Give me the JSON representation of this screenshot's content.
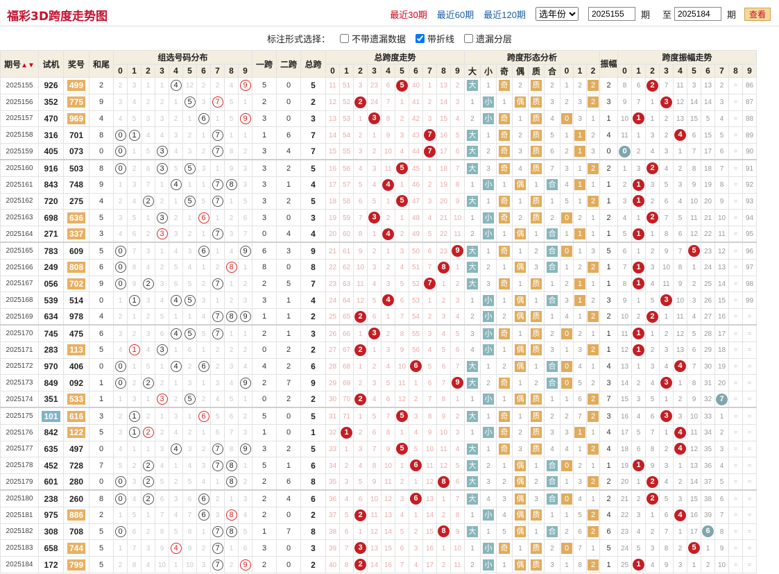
{
  "header": {
    "title": "福彩3D跨度走势图",
    "nav": [
      {
        "label": "最近30期",
        "active": true
      },
      {
        "label": "最近60期",
        "active": false
      },
      {
        "label": "最近120期",
        "active": false
      }
    ],
    "year_select": "选年份",
    "from_value": "2025155",
    "from_unit": "期",
    "to_label": "至",
    "to_value": "2025184",
    "to_unit": "期",
    "query_button": "查看"
  },
  "options": {
    "label": "标注形式选择：",
    "items": [
      {
        "label": "不带遗漏数据",
        "checked": false
      },
      {
        "label": "带折线",
        "checked": true
      },
      {
        "label": "遗漏分层",
        "checked": false
      }
    ]
  },
  "columns": {
    "qihao": "期号",
    "shiji": "试机",
    "jianghao": "奖号",
    "hewei": "和尾",
    "zuxuan": "组选号码分布",
    "yikua": "一跨",
    "erkua": "二跨",
    "zongkua": "总跨",
    "zkzs": "总跨度走势",
    "xtfx": "跨度形态分析",
    "zhenfu": "振幅",
    "zfzs": "跨度振幅走势",
    "form_heads": [
      "大",
      "小",
      "奇",
      "偶",
      "质",
      "合",
      "0",
      "1",
      "2"
    ],
    "digits": [
      "0",
      "1",
      "2",
      "3",
      "4",
      "5",
      "6",
      "7",
      "8",
      "9"
    ]
  },
  "rows": [
    {
      "q": "2025155",
      "s": "926",
      "j": "499",
      "jh": true,
      "h": "2",
      "zx": "2,3,1,1,C4,12,2,2,4,R9",
      "y1": "5",
      "y2": "0",
      "zk": "5",
      "kz": "11,51,3,23,6,B5,40,1,13,2",
      "dx": "大,1",
      "jo": "奇,2",
      "zh": "质,2",
      "012": "1,2,O2",
      "zf": "2",
      "zz": "8,6,B2,7,11,3,13,2,-,86"
    },
    {
      "q": "2025156",
      "s": "352",
      "j": "775",
      "jh": true,
      "h": "9",
      "zx": "3,4,2,2,1,C5,3,R7,5,1",
      "y1": "2",
      "y2": "0",
      "zk": "2",
      "kz": "12,52,B2,24,7,1,41,2,14,3",
      "dx": "1,小",
      "jo": "1,偶",
      "zh": "质,3",
      "012": "2,3,O2",
      "zf": "3",
      "zz": "9,7,1,B3,12,14,14,3,-,87"
    },
    {
      "q": "2025157",
      "s": "470",
      "j": "969",
      "jh": true,
      "h": "4",
      "zx": "4,5,3,3,2,1,C6,1,5,R9",
      "y1": "3",
      "y2": "0",
      "zk": "3",
      "kz": "13,53,1,B3,8,2,42,3,15,4",
      "dx": "2,小",
      "jo": "奇,1",
      "zh": "质,4",
      "012": "O0,3,1",
      "zf": "1",
      "zz": "10,B1,1,2,13,15,5,4,-,88"
    },
    {
      "q": "2025158",
      "s": "316",
      "j": "701",
      "jh": false,
      "h": "8",
      "zx": "C0,C1,4,4,3,2,1,C7,1,1",
      "y1": "1",
      "y2": "6",
      "zk": "7",
      "kz": "14,54,2,1,9,3,43,B7,16,5",
      "dx": "大,1",
      "jo": "奇,2",
      "zh": "质,5",
      "012": "1,O1,2",
      "zf": "4",
      "zz": "11,1,3,2,B4,6,15,5,-,89"
    },
    {
      "q": "2025159",
      "s": "405",
      "j": "073",
      "jh": false,
      "h": "0",
      "zx": "C0,1,5,C3,4,3,2,C7,8,2",
      "y1": "3",
      "y2": "4",
      "zk": "7",
      "kz": "15,55,3,2,10,4,44,B7,17,6",
      "dx": "大,2",
      "jo": "奇,3",
      "zh": "质,6",
      "012": "2,O1,3",
      "zf": "0",
      "zz": "T0,2,4,3,1,7,17,6,-,90"
    },
    {
      "q": "2025160",
      "s": "916",
      "j": "503",
      "jh": false,
      "h": "8",
      "zx": "C0,2,6,C3,5,C5,3,1,9,3",
      "y1": "3",
      "y2": "2",
      "zk": "5",
      "kz": "16,56,4,3,11,B5,45,1,18,7",
      "dx": "大,3",
      "jo": "奇,4",
      "zh": "质,7",
      "012": "3,1,O2",
      "zf": "2",
      "zz": "1,3,B2,4,2,8,18,7,-,91"
    },
    {
      "q": "2025161",
      "s": "843",
      "j": "748",
      "jh": false,
      "h": "9",
      "zx": "1,3,7,1,C4,1,1,C7,C8,3",
      "y1": "3",
      "y2": "1",
      "zk": "4",
      "kz": "17,57,5,4,B4,1,46,2,19,8",
      "dx": "1,小",
      "jo": "1,偶",
      "zh": "1,合",
      "012": "4,O1,1",
      "zf": "1",
      "zz": "2,B1,3,5,3,9,19,8,-,92"
    },
    {
      "q": "2025162",
      "s": "720",
      "j": "275",
      "jh": false,
      "h": "4",
      "zx": "2,4,C2,2,1,C5,5,C7,1,5",
      "y1": "3",
      "y2": "2",
      "zk": "5",
      "kz": "18,58,6,5,1,B5,47,3,20,9",
      "dx": "大,1",
      "jo": "奇,1",
      "zh": "质,1",
      "012": "5,1,O2",
      "zf": "1",
      "zz": "3,B1,2,6,4,10,20,9,-,93"
    },
    {
      "q": "2025163",
      "s": "698",
      "j": "636",
      "jh": true,
      "h": "5",
      "zx": "3,5,1,C3,2,1,R6,1,2,6",
      "y1": "3",
      "y2": "0",
      "zk": "3",
      "kz": "19,59,7,B3,2,1,48,4,21,10",
      "dx": "1,小",
      "jo": "奇,2",
      "zh": "质,2",
      "012": "O0,2,1",
      "zf": "2",
      "zz": "4,1,B2,7,5,11,21,10,-,94"
    },
    {
      "q": "2025164",
      "s": "271",
      "j": "337",
      "jh": true,
      "h": "3",
      "zx": "4,6,2,R3,3,2,1,C7,3,7",
      "y1": "0",
      "y2": "4",
      "zk": "4",
      "kz": "20,60,8,1,B4,2,49,5,22,11",
      "dx": "2,小",
      "jo": "1,偶",
      "zh": "1,合",
      "012": "1,O1,1",
      "zf": "1",
      "zz": "5,B1,1,8,6,12,22,11,-,95"
    },
    {
      "q": "2025165",
      "s": "783",
      "j": "609",
      "jh": false,
      "h": "5",
      "zx": "C0,7,3,1,4,3,C6,1,4,C9",
      "y1": "6",
      "y2": "3",
      "zk": "9",
      "kz": "21,61,9,2,1,3,50,6,23,B9",
      "dx": "大,1",
      "jo": "奇,1",
      "zh": "2,合",
      "012": "O0,1,3",
      "zf": "5",
      "zz": "6,1,2,9,7,B5,23,12,-,96"
    },
    {
      "q": "2025166",
      "s": "249",
      "j": "808",
      "jh": true,
      "h": "6",
      "zx": "C0,8,4,2,5,4,1,2,R8,1",
      "y1": "8",
      "y2": "0",
      "zk": "8",
      "kz": "22,62,10,3,2,4,51,7,B8,1",
      "dx": "大,2",
      "jo": "1,偶",
      "zh": "3,合",
      "012": "1,2,O2",
      "zf": "1",
      "zz": "7,B1,3,10,8,1,24,13,-,97"
    },
    {
      "q": "2025167",
      "s": "056",
      "j": "702",
      "jh": true,
      "h": "9",
      "zx": "C0,9,C2,3,6,5,2,C7,1,2",
      "y1": "2",
      "y2": "5",
      "zk": "7",
      "kz": "23,63,11,4,3,5,52,B7,1,2",
      "dx": "大,3",
      "jo": "奇,1",
      "zh": "质,1",
      "012": "2,O1,1",
      "zf": "1",
      "zz": "8,B1,4,11,9,2,25,14,-,98"
    },
    {
      "q": "2025168",
      "s": "539",
      "j": "514",
      "jh": false,
      "h": "0",
      "zx": "1,C1,3,4,C4,C5,3,1,2,3",
      "y1": "3",
      "y2": "1",
      "zk": "4",
      "kz": "24,64,12,5,B4,6,53,1,2,3",
      "dx": "1,小",
      "jo": "1,偶",
      "zh": "1,合",
      "012": "3,O1,2",
      "zf": "3",
      "zz": "9,1,5,B3,10,3,26,15,-,99"
    },
    {
      "q": "2025169",
      "s": "634",
      "j": "978",
      "jh": false,
      "h": "4",
      "zx": "2,1,2,5,1,1,4,C7,C8,C9",
      "y1": "1",
      "y2": "1",
      "zk": "2",
      "kz": "25,65,B2,6,1,7,54,2,3,4",
      "dx": "2,小",
      "jo": "2,偶",
      "zh": "质,1",
      "012": "4,1,O2",
      "zf": "2",
      "zz": "10,2,B2,1,11,4,27,16,-,-"
    },
    {
      "q": "2025170",
      "s": "745",
      "j": "475",
      "jh": false,
      "h": "6",
      "zx": "3,2,3,6,C4,C5,5,C7,1,1",
      "y1": "2",
      "y2": "1",
      "zk": "3",
      "kz": "26,66,1,B3,2,8,55,3,4,5",
      "dx": "3,小",
      "jo": "奇,1",
      "zh": "质,2",
      "012": "O0,2,1",
      "zf": "1",
      "zz": "11,B1,1,2,12,5,28,17,-,-"
    },
    {
      "q": "2025171",
      "s": "283",
      "j": "113",
      "jh": true,
      "h": "5",
      "zx": "4,R1,4,C3,1,6,1,2,2,2",
      "y1": "0",
      "y2": "2",
      "zk": "2",
      "kz": "27,67,B2,1,3,9,56,4,5,6",
      "dx": "4,小",
      "jo": "1,偶",
      "zh": "质,3",
      "012": "1,3,O2",
      "zf": "1",
      "zz": "12,B1,2,3,13,6,29,18,-,-"
    },
    {
      "q": "2025172",
      "s": "970",
      "j": "406",
      "jh": false,
      "h": "0",
      "zx": "C0,1,5,1,C4,2,C6,2,3,4",
      "y1": "4",
      "y2": "2",
      "zk": "6",
      "kz": "28,68,1,2,4,10,B6,5,6,7",
      "dx": "大,1",
      "jo": "2,偶",
      "zh": "1,合",
      "012": "O0,4,1",
      "zf": "4",
      "zz": "13,1,3,4,B4,7,30,19,-,-"
    },
    {
      "q": "2025173",
      "s": "849",
      "j": "092",
      "jh": false,
      "h": "1",
      "zx": "C0,2,C2,2,1,3,1,3,4,C9",
      "y1": "2",
      "y2": "7",
      "zk": "9",
      "kz": "29,69,2,3,5,11,1,6,7,B9",
      "dx": "大,2",
      "jo": "奇,1",
      "zh": "2,合",
      "012": "O0,5,2",
      "zf": "3",
      "zz": "14,2,4,B3,1,8,31,20,-,-"
    },
    {
      "q": "2025174",
      "s": "351",
      "j": "533",
      "jh": true,
      "h": "1",
      "zx": "1,3,1,R3,2,C5,2,4,5,1",
      "y1": "0",
      "y2": "2",
      "zk": "2",
      "kz": "30,70,B2,4,6,12,2,7,8,1",
      "dx": "1,小",
      "jo": "1,偶",
      "zh": "质,1",
      "012": "1,6,O2",
      "zf": "7",
      "zz": "15,3,5,1,2,9,32,T7,-,-"
    },
    {
      "q": "2025175",
      "s": "101",
      "sh": true,
      "j": "616",
      "jh": true,
      "h": "3",
      "zx": "2,C1,2,1,3,1,R6,5,6,2",
      "y1": "5",
      "y2": "0",
      "zk": "5",
      "kz": "31,71,1,5,7,B5,3,8,9,2",
      "dx": "大,1",
      "jo": "奇,1",
      "zh": "质,2",
      "012": "2,7,O2",
      "zf": "3",
      "zz": "16,4,6,B3,3,10,33,1,-,-"
    },
    {
      "q": "2025176",
      "s": "842",
      "j": "122",
      "jh": true,
      "h": "5",
      "zx": "3,C1,R2,2,4,2,1,6,7,3",
      "y1": "1",
      "y2": "0",
      "zk": "1",
      "kz": "32,B1,2,6,8,1,4,9,10,3",
      "dx": "1,小",
      "jo": "奇,2",
      "zh": "质,3",
      "012": "3,O1,1",
      "zf": "4",
      "zz": "17,5,7,1,B4,11,34,2,-,-"
    },
    {
      "q": "2025177",
      "s": "635",
      "j": "497",
      "jh": false,
      "h": "0",
      "zx": "4,1,1,3,C4,3,2,C7,8,C9",
      "y1": "3",
      "y2": "2",
      "zk": "5",
      "kz": "33,1,3,7,9,B5,5,10,11,4",
      "dx": "大,1",
      "jo": "奇,3",
      "zh": "质,4",
      "012": "4,1,O2",
      "zf": "4",
      "zz": "18,6,8,2,B4,12,35,3,-,-"
    },
    {
      "q": "2025178",
      "s": "452",
      "j": "728",
      "jh": false,
      "h": "7",
      "zx": "5,2,C2,4,1,4,3,C7,C8,1",
      "y1": "5",
      "y2": "1",
      "zk": "6",
      "kz": "34,2,4,8,10,1,B6,11,12,5",
      "dx": "大,2",
      "jo": "1,偶",
      "zh": "1,合",
      "012": "O0,2,1",
      "zf": "1",
      "zz": "19,B1,9,3,1,13,36,4,-,-"
    },
    {
      "q": "2025179",
      "s": "601",
      "j": "280",
      "jh": false,
      "h": "0",
      "zx": "C0,3,C2,5,2,5,4,1,C8,2",
      "y1": "2",
      "y2": "6",
      "zk": "8",
      "kz": "35,3,5,9,11,2,1,12,B8,6",
      "dx": "大,3",
      "jo": "2,偶",
      "zh": "2,合",
      "012": "1,3,O2",
      "zf": "2",
      "zz": "20,1,B2,4,2,14,37,5,-,-"
    },
    {
      "q": "2025180",
      "s": "238",
      "j": "260",
      "jh": false,
      "h": "8",
      "zx": "C0,4,C2,6,3,6,C6,2,1,3",
      "y1": "2",
      "y2": "4",
      "zk": "6",
      "kz": "36,4,6,10,12,3,B6,13,1,7",
      "dx": "大,4",
      "jo": "3,偶",
      "zh": "3,合",
      "012": "O0,4,1",
      "zf": "2",
      "zz": "21,2,B2,5,3,15,38,6,-,-"
    },
    {
      "q": "2025181",
      "s": "975",
      "j": "886",
      "jh": true,
      "h": "2",
      "zx": "1,5,1,7,4,7,C6,3,R8,4",
      "y1": "2",
      "y2": "0",
      "zk": "2",
      "kz": "37,5,B2,11,13,4,1,14,2,8",
      "dx": "1,小",
      "jo": "4,偶",
      "zh": "质,1",
      "012": "1,5,O2",
      "zf": "4",
      "zz": "22,3,1,6,B4,16,39,7,-,-"
    },
    {
      "q": "2025182",
      "s": "308",
      "j": "708",
      "jh": false,
      "h": "5",
      "zx": "C0,6,2,8,5,8,1,C7,C8,5",
      "y1": "1",
      "y2": "7",
      "zk": "8",
      "kz": "38,6,1,12,14,5,2,15,B8,9",
      "dx": "大,1",
      "jo": "5,偶",
      "zh": "1,合",
      "012": "2,6,O2",
      "zf": "6",
      "zz": "23,4,2,7,1,17,T6,8,-,-"
    },
    {
      "q": "2025183",
      "s": "658",
      "j": "744",
      "jh": true,
      "h": "5",
      "zx": "1,7,3,9,R4,9,2,C7,1,6",
      "y1": "3",
      "y2": "0",
      "zk": "3",
      "kz": "39,7,B3,13,15,6,3,16,1,10",
      "dx": "1,小",
      "jo": "奇,1",
      "zh": "质,2",
      "012": "O0,7,1",
      "zf": "5",
      "zz": "24,5,3,8,2,B5,1,9,-,-"
    },
    {
      "q": "2025184",
      "s": "172",
      "j": "799",
      "jh": true,
      "h": "5",
      "zx": "2,8,4,10,1,10,3,C7,2,R9",
      "y1": "2",
      "y2": "0",
      "zk": "2",
      "kz": "40,8,B2,14,16,7,4,17,2,11",
      "dx": "2,小",
      "jo": "1,偶",
      "zh": "质,3",
      "012": "1,8,O2",
      "zf": "1",
      "zz": "25,B1,4,9,3,1,2,10,-,-"
    }
  ]
}
